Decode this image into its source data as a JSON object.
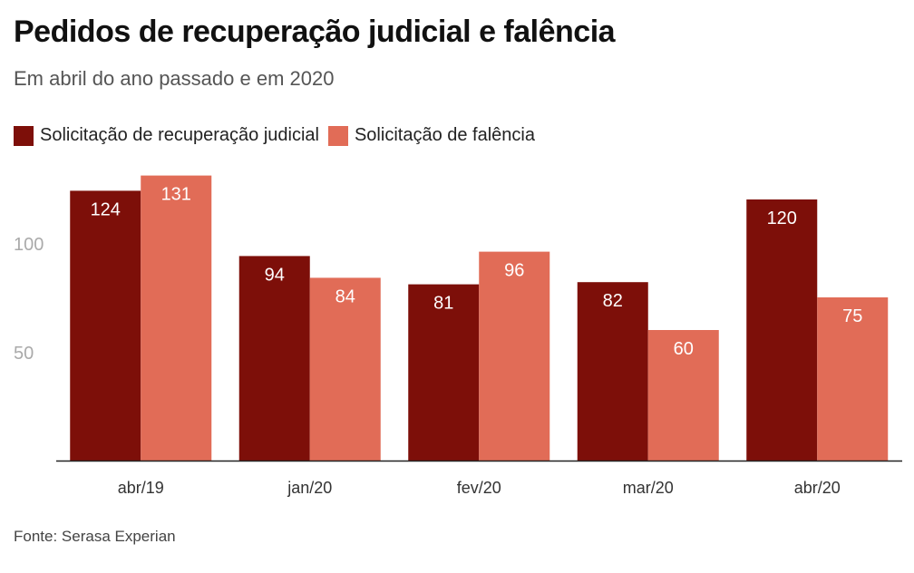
{
  "chart_data": {
    "type": "bar",
    "title": "Pedidos de recuperação judicial e falência",
    "subtitle": "Em abril do ano passado e em 2020",
    "categories": [
      "abr/19",
      "jan/20",
      "fev/20",
      "mar/20",
      "abr/20"
    ],
    "series": [
      {
        "name": "Solicitação de recuperação judicial",
        "color": "#7d0f09",
        "values": [
          124,
          94,
          81,
          82,
          120
        ]
      },
      {
        "name": "Solicitação de falência",
        "color": "#e16c57",
        "values": [
          131,
          84,
          96,
          60,
          75
        ]
      }
    ],
    "yticks": [
      50,
      100
    ],
    "ylim": [
      0,
      135
    ],
    "legend": "top-left",
    "source": "Fonte: Serasa Experian"
  }
}
